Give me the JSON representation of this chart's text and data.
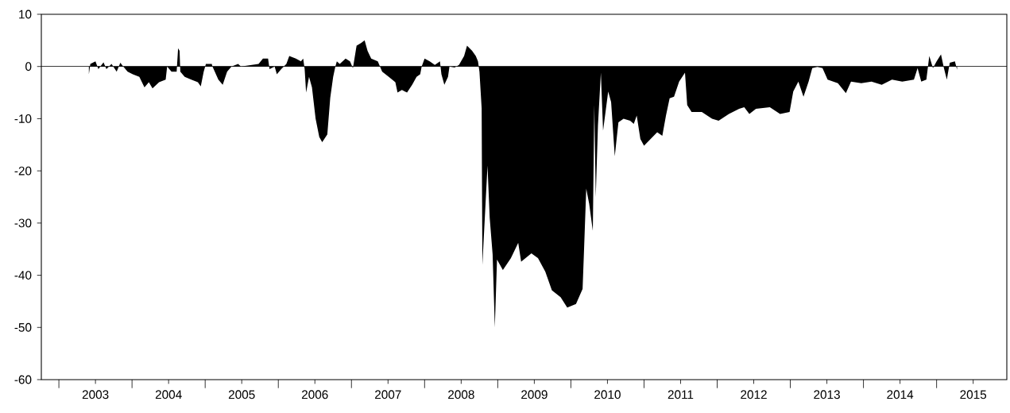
{
  "chart_data": {
    "type": "area",
    "color": "#000000",
    "x": [
      2003.41,
      2003.43,
      2003.5,
      2003.54,
      2003.61,
      2003.65,
      2003.72,
      2003.79,
      2003.84,
      2003.88,
      2003.94,
      2004.01,
      2004.1,
      2004.17,
      2004.23,
      2004.28,
      2004.37,
      2004.46,
      2004.48,
      2004.54,
      2004.61,
      2004.63,
      2004.65,
      2004.66,
      2004.72,
      2004.81,
      2004.9,
      2004.94,
      2004.98,
      2005.01,
      2005.09,
      2005.1,
      2005.18,
      2005.24,
      2005.3,
      2005.36,
      2005.45,
      2005.49,
      2005.73,
      2005.79,
      2005.86,
      2005.88,
      2005.95,
      2005.98,
      2006.04,
      2006.11,
      2006.15,
      2006.24,
      2006.31,
      2006.34,
      2006.36,
      2006.38,
      2006.42,
      2006.46,
      2006.51,
      2006.56,
      2006.6,
      2006.67,
      2006.71,
      2006.75,
      2006.78,
      2006.8,
      2006.84,
      2006.92,
      2006.98,
      2007.02,
      2007.07,
      2007.13,
      2007.18,
      2007.22,
      2007.27,
      2007.36,
      2007.42,
      2007.51,
      2007.6,
      2007.63,
      2007.69,
      2007.76,
      2007.83,
      2007.89,
      2007.94,
      2007.96,
      2008.0,
      2008.07,
      2008.14,
      2008.21,
      2008.23,
      2008.27,
      2008.32,
      2008.34,
      2008.41,
      2008.47,
      2008.54,
      2008.58,
      2008.65,
      2008.7,
      2008.73,
      2008.75,
      2008.78,
      2008.79,
      2008.86,
      2008.89,
      2008.93,
      2008.96,
      2008.99,
      2009.07,
      2009.18,
      2009.28,
      2009.32,
      2009.46,
      2009.55,
      2009.65,
      2009.74,
      2009.86,
      2009.95,
      2010.07,
      2010.16,
      2010.18,
      2010.21,
      2010.25,
      2010.3,
      2010.32,
      2010.34,
      2010.37,
      2010.41,
      2010.44,
      2010.51,
      2010.55,
      2010.6,
      2010.65,
      2010.72,
      2010.81,
      2010.86,
      2010.9,
      2010.95,
      2011.0,
      2011.09,
      2011.18,
      2011.25,
      2011.3,
      2011.35,
      2011.41,
      2011.48,
      2011.56,
      2011.59,
      2011.65,
      2011.79,
      2011.93,
      2012.02,
      2012.16,
      2012.3,
      2012.37,
      2012.44,
      2012.53,
      2012.72,
      2012.86,
      2012.99,
      2013.04,
      2013.11,
      2013.18,
      2013.25,
      2013.3,
      2013.37,
      2013.44,
      2013.51,
      2013.65,
      2013.76,
      2013.83,
      2013.97,
      2014.11,
      2014.25,
      2014.39,
      2014.53,
      2014.69,
      2014.74,
      2014.79,
      2014.86,
      2014.9,
      2014.95,
      2015.0,
      2015.06,
      2015.1,
      2015.14,
      2015.18,
      2015.25,
      2015.28
    ],
    "values": [
      -1.5,
      0.5,
      1.0,
      -0.5,
      0.8,
      -0.5,
      0.5,
      -1.0,
      0.7,
      0,
      -1.0,
      -1.5,
      -2.0,
      -4.0,
      -3.0,
      -4.2,
      -3.0,
      -2.5,
      0,
      -1.0,
      -1.0,
      3.5,
      3.0,
      -1.0,
      -2.0,
      -2.5,
      -3.0,
      -3.8,
      -1.0,
      0.5,
      0.5,
      0,
      -2.5,
      -3.5,
      -1.0,
      0,
      0.5,
      0,
      0.5,
      1.5,
      1.5,
      -0.5,
      0,
      -1.5,
      -0.5,
      0.5,
      2.0,
      1.5,
      1.0,
      1.5,
      -0.5,
      -5.0,
      -2.0,
      -4.0,
      -10.0,
      -13.5,
      -14.5,
      -13.0,
      -6.0,
      -2.0,
      0,
      1.0,
      0.5,
      1.5,
      1.0,
      -0.3,
      4.0,
      4.5,
      5.0,
      3.0,
      1.5,
      1.0,
      -1.0,
      -2.0,
      -3.0,
      -5.0,
      -4.5,
      -5.0,
      -3.5,
      -2.0,
      -1.5,
      0,
      1.5,
      1.0,
      0.3,
      1.0,
      -1.5,
      -3.5,
      -2.0,
      0,
      -0.2,
      0.3,
      2.0,
      4.0,
      3.0,
      2.0,
      1.0,
      -1.0,
      -8.0,
      -38.0,
      -19.0,
      -29.0,
      -36.0,
      -50.0,
      -37.0,
      -39.0,
      -36.7,
      -33.8,
      -37.4,
      -35.8,
      -36.7,
      -39.3,
      -42.9,
      -44.2,
      -46.2,
      -45.5,
      -42.6,
      -35.1,
      -23.4,
      -26.3,
      -31.5,
      -7.4,
      -25.0,
      -11.3,
      -1.2,
      -12.3,
      -4.8,
      -6.8,
      -17.2,
      -10.7,
      -10.0,
      -10.4,
      -11.0,
      -9.4,
      -13.9,
      -15.2,
      -13.9,
      -12.6,
      -13.3,
      -9.4,
      -6.1,
      -5.8,
      -2.9,
      -1.2,
      -7.4,
      -8.7,
      -8.7,
      -10.0,
      -10.4,
      -9.1,
      -8.1,
      -7.8,
      -9.1,
      -8.1,
      -7.8,
      -9.1,
      -8.7,
      -4.8,
      -2.9,
      -5.8,
      -2.9,
      -0.3,
      -0.1,
      -0.3,
      -2.5,
      -3.2,
      -5.1,
      -2.9,
      -3.2,
      -2.9,
      -3.5,
      -2.5,
      -2.9,
      -2.5,
      -0.3,
      -2.9,
      -2.5,
      2.0,
      -0.3,
      1.0,
      2.3,
      -0.3,
      -2.5,
      0.7,
      1.0,
      -0.6
    ],
    "xlim": [
      2002.76,
      2015.96
    ],
    "ylim": [
      -60,
      10
    ],
    "xticks": [
      {
        "value": 2003,
        "label": null
      },
      {
        "value": 2003.5,
        "label": "2003"
      },
      {
        "value": 2004,
        "label": null
      },
      {
        "value": 2004.5,
        "label": "2004"
      },
      {
        "value": 2005,
        "label": null
      },
      {
        "value": 2005.5,
        "label": "2005"
      },
      {
        "value": 2006,
        "label": null
      },
      {
        "value": 2006.5,
        "label": "2006"
      },
      {
        "value": 2007,
        "label": null
      },
      {
        "value": 2007.5,
        "label": "2007"
      },
      {
        "value": 2008,
        "label": null
      },
      {
        "value": 2008.5,
        "label": "2008"
      },
      {
        "value": 2009,
        "label": null
      },
      {
        "value": 2009.5,
        "label": "2009"
      },
      {
        "value": 2010,
        "label": null
      },
      {
        "value": 2010.5,
        "label": "2010"
      },
      {
        "value": 2011,
        "label": null
      },
      {
        "value": 2011.5,
        "label": "2011"
      },
      {
        "value": 2012,
        "label": null
      },
      {
        "value": 2012.5,
        "label": "2012"
      },
      {
        "value": 2013,
        "label": null
      },
      {
        "value": 2013.5,
        "label": "2013"
      },
      {
        "value": 2014,
        "label": null
      },
      {
        "value": 2014.5,
        "label": "2014"
      },
      {
        "value": 2015,
        "label": null
      },
      {
        "value": 2015.5,
        "label": "2015"
      }
    ],
    "yticks": [
      -60,
      -50,
      -40,
      -30,
      -20,
      -10,
      0,
      10
    ],
    "ref_lines": [
      {
        "axis": "y",
        "value": 0,
        "color": "#000000"
      }
    ]
  }
}
